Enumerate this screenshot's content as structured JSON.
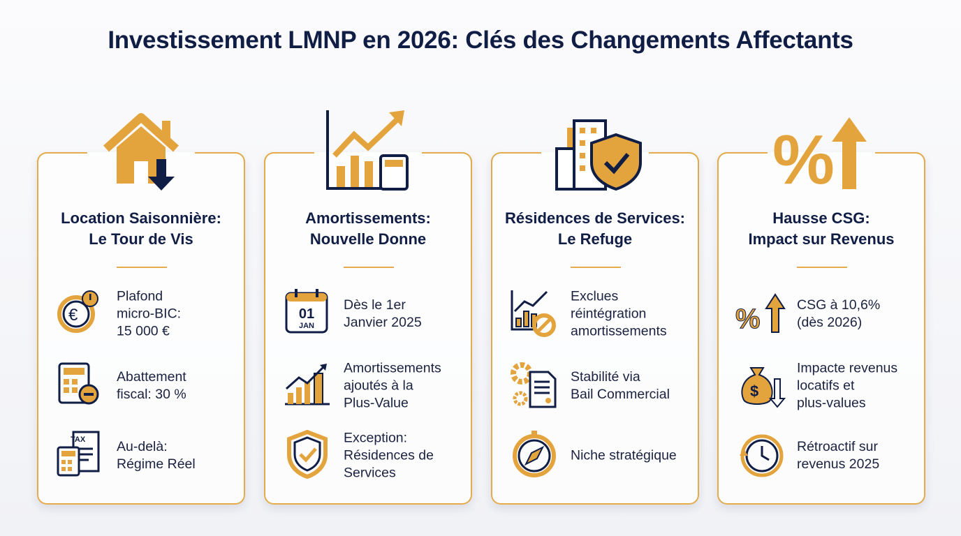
{
  "title": "Investissement LMNP en 2026: Clés des Changements Affectants",
  "colors": {
    "gold": "#e3a43e",
    "navy": "#101d45"
  },
  "cards": [
    {
      "icon": "house-down-icon",
      "title_line1": "Location Saisonnière:",
      "title_line2": "Le Tour de Vis",
      "items": [
        {
          "icon": "euro-alert-icon",
          "text": "Plafond\nmicro-BIC:\n15 000 €"
        },
        {
          "icon": "calculator-minus-icon",
          "text": "Abattement\nfiscal: 30 %"
        },
        {
          "icon": "tax-document-icon",
          "text": "Au-delà:\nRégime Réel",
          "icon_text": "TAX"
        }
      ]
    },
    {
      "icon": "chart-calculator-icon",
      "title_line1": "Amortissements:",
      "title_line2": "Nouvelle Donne",
      "items": [
        {
          "icon": "calendar-icon",
          "text": "Dès le 1er\nJanvier 2025",
          "icon_day": "01",
          "icon_month": "JAN"
        },
        {
          "icon": "growth-chart-icon",
          "text": "Amortissements\najoutés à la\nPlus-Value"
        },
        {
          "icon": "shield-check-icon",
          "text": "Exception:\nRésidences de\nServices"
        }
      ]
    },
    {
      "icon": "building-shield-icon",
      "title_line1": "Résidences de Services:",
      "title_line2": "Le Refuge",
      "items": [
        {
          "icon": "chart-prohibited-icon",
          "text": "Exclues\nréintégration\namortissements"
        },
        {
          "icon": "gear-contract-icon",
          "text": "Stabilité via\nBail Commercial"
        },
        {
          "icon": "compass-icon",
          "text": "Niche stratégique"
        }
      ]
    },
    {
      "icon": "percent-up-icon",
      "title_line1": "Hausse CSG:",
      "title_line2": "Impact sur Revenus",
      "items": [
        {
          "icon": "percent-up-small-icon",
          "text": "CSG à 10,6%\n(dès 2026)"
        },
        {
          "icon": "money-bag-down-icon",
          "text": "Impacte revenus\nlocatifs et\nplus-values"
        },
        {
          "icon": "clock-retro-icon",
          "text": "Rétroactif sur\nrevenus 2025"
        }
      ]
    }
  ]
}
